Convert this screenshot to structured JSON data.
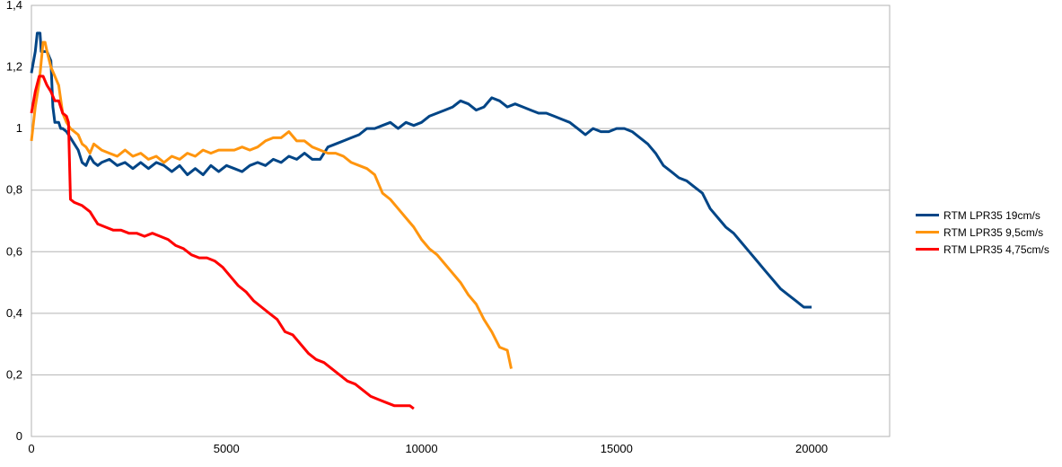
{
  "chart_data": {
    "type": "line",
    "title": "",
    "xlabel": "",
    "ylabel": "",
    "xlim": [
      0,
      22000
    ],
    "ylim": [
      0,
      1.4
    ],
    "x_ticks": [
      0,
      5000,
      10000,
      15000,
      20000
    ],
    "y_ticks": [
      0,
      0.2,
      0.4,
      0.6,
      0.8,
      1,
      1.2,
      1.4
    ],
    "x_tick_labels": [
      "0",
      "5000",
      "10000",
      "15000",
      "20000"
    ],
    "y_tick_labels": [
      "0",
      "0,2",
      "0,4",
      "0,6",
      "0,8",
      "1",
      "1,2",
      "1,4"
    ],
    "grid": "horizontal",
    "legend_position": "right",
    "series": [
      {
        "name": "RTM LPR35 19cm/s",
        "color": "#004586",
        "points": [
          [
            0,
            1.18
          ],
          [
            100,
            1.25
          ],
          [
            150,
            1.31
          ],
          [
            220,
            1.31
          ],
          [
            250,
            1.25
          ],
          [
            400,
            1.25
          ],
          [
            500,
            1.22
          ],
          [
            550,
            1.07
          ],
          [
            600,
            1.02
          ],
          [
            700,
            1.02
          ],
          [
            750,
            1.0
          ],
          [
            800,
            1.0
          ],
          [
            900,
            0.99
          ],
          [
            1000,
            0.97
          ],
          [
            1100,
            0.95
          ],
          [
            1200,
            0.93
          ],
          [
            1300,
            0.89
          ],
          [
            1400,
            0.88
          ],
          [
            1500,
            0.91
          ],
          [
            1600,
            0.89
          ],
          [
            1700,
            0.88
          ],
          [
            1800,
            0.89
          ],
          [
            2000,
            0.9
          ],
          [
            2200,
            0.88
          ],
          [
            2400,
            0.89
          ],
          [
            2600,
            0.87
          ],
          [
            2800,
            0.89
          ],
          [
            3000,
            0.87
          ],
          [
            3200,
            0.89
          ],
          [
            3400,
            0.88
          ],
          [
            3600,
            0.86
          ],
          [
            3800,
            0.88
          ],
          [
            4000,
            0.85
          ],
          [
            4200,
            0.87
          ],
          [
            4400,
            0.85
          ],
          [
            4600,
            0.88
          ],
          [
            4800,
            0.86
          ],
          [
            5000,
            0.88
          ],
          [
            5200,
            0.87
          ],
          [
            5400,
            0.86
          ],
          [
            5600,
            0.88
          ],
          [
            5800,
            0.89
          ],
          [
            6000,
            0.88
          ],
          [
            6200,
            0.9
          ],
          [
            6400,
            0.89
          ],
          [
            6600,
            0.91
          ],
          [
            6800,
            0.9
          ],
          [
            7000,
            0.92
          ],
          [
            7200,
            0.9
          ],
          [
            7400,
            0.9
          ],
          [
            7600,
            0.94
          ],
          [
            7800,
            0.95
          ],
          [
            8000,
            0.96
          ],
          [
            8200,
            0.97
          ],
          [
            8400,
            0.98
          ],
          [
            8600,
            1.0
          ],
          [
            8800,
            1.0
          ],
          [
            9000,
            1.01
          ],
          [
            9200,
            1.02
          ],
          [
            9400,
            1.0
          ],
          [
            9600,
            1.02
          ],
          [
            9800,
            1.01
          ],
          [
            10000,
            1.02
          ],
          [
            10200,
            1.04
          ],
          [
            10400,
            1.05
          ],
          [
            10600,
            1.06
          ],
          [
            10800,
            1.07
          ],
          [
            11000,
            1.09
          ],
          [
            11200,
            1.08
          ],
          [
            11400,
            1.06
          ],
          [
            11600,
            1.07
          ],
          [
            11800,
            1.1
          ],
          [
            12000,
            1.09
          ],
          [
            12200,
            1.07
          ],
          [
            12400,
            1.08
          ],
          [
            12600,
            1.07
          ],
          [
            12800,
            1.06
          ],
          [
            13000,
            1.05
          ],
          [
            13200,
            1.05
          ],
          [
            13400,
            1.04
          ],
          [
            13600,
            1.03
          ],
          [
            13800,
            1.02
          ],
          [
            14000,
            1.0
          ],
          [
            14200,
            0.98
          ],
          [
            14400,
            1.0
          ],
          [
            14600,
            0.99
          ],
          [
            14800,
            0.99
          ],
          [
            15000,
            1.0
          ],
          [
            15200,
            1.0
          ],
          [
            15400,
            0.99
          ],
          [
            15600,
            0.97
          ],
          [
            15800,
            0.95
          ],
          [
            16000,
            0.92
          ],
          [
            16200,
            0.88
          ],
          [
            16400,
            0.86
          ],
          [
            16600,
            0.84
          ],
          [
            16800,
            0.83
          ],
          [
            17000,
            0.81
          ],
          [
            17200,
            0.79
          ],
          [
            17400,
            0.74
          ],
          [
            17600,
            0.71
          ],
          [
            17800,
            0.68
          ],
          [
            18000,
            0.66
          ],
          [
            18200,
            0.63
          ],
          [
            18400,
            0.6
          ],
          [
            18600,
            0.57
          ],
          [
            18800,
            0.54
          ],
          [
            19000,
            0.51
          ],
          [
            19200,
            0.48
          ],
          [
            19400,
            0.46
          ],
          [
            19600,
            0.44
          ],
          [
            19800,
            0.42
          ],
          [
            20000,
            0.42
          ]
        ]
      },
      {
        "name": "RTM LPR35 9,5cm/s",
        "color": "#ff950e",
        "points": [
          [
            0,
            0.96
          ],
          [
            100,
            1.07
          ],
          [
            200,
            1.15
          ],
          [
            300,
            1.28
          ],
          [
            350,
            1.28
          ],
          [
            400,
            1.25
          ],
          [
            500,
            1.2
          ],
          [
            600,
            1.17
          ],
          [
            700,
            1.14
          ],
          [
            800,
            1.05
          ],
          [
            900,
            1.02
          ],
          [
            1000,
            1.0
          ],
          [
            1100,
            0.99
          ],
          [
            1200,
            0.98
          ],
          [
            1300,
            0.95
          ],
          [
            1400,
            0.94
          ],
          [
            1500,
            0.92
          ],
          [
            1600,
            0.95
          ],
          [
            1800,
            0.93
          ],
          [
            2000,
            0.92
          ],
          [
            2200,
            0.91
          ],
          [
            2400,
            0.93
          ],
          [
            2600,
            0.91
          ],
          [
            2800,
            0.92
          ],
          [
            3000,
            0.9
          ],
          [
            3200,
            0.91
          ],
          [
            3400,
            0.89
          ],
          [
            3600,
            0.91
          ],
          [
            3800,
            0.9
          ],
          [
            4000,
            0.92
          ],
          [
            4200,
            0.91
          ],
          [
            4400,
            0.93
          ],
          [
            4600,
            0.92
          ],
          [
            4800,
            0.93
          ],
          [
            5000,
            0.93
          ],
          [
            5200,
            0.93
          ],
          [
            5400,
            0.94
          ],
          [
            5600,
            0.93
          ],
          [
            5800,
            0.94
          ],
          [
            6000,
            0.96
          ],
          [
            6200,
            0.97
          ],
          [
            6400,
            0.97
          ],
          [
            6600,
            0.99
          ],
          [
            6800,
            0.96
          ],
          [
            7000,
            0.96
          ],
          [
            7200,
            0.94
          ],
          [
            7400,
            0.93
          ],
          [
            7600,
            0.92
          ],
          [
            7800,
            0.92
          ],
          [
            8000,
            0.91
          ],
          [
            8200,
            0.89
          ],
          [
            8400,
            0.88
          ],
          [
            8600,
            0.87
          ],
          [
            8800,
            0.85
          ],
          [
            9000,
            0.79
          ],
          [
            9200,
            0.77
          ],
          [
            9400,
            0.74
          ],
          [
            9600,
            0.71
          ],
          [
            9800,
            0.68
          ],
          [
            10000,
            0.64
          ],
          [
            10200,
            0.61
          ],
          [
            10400,
            0.59
          ],
          [
            10600,
            0.56
          ],
          [
            10800,
            0.53
          ],
          [
            11000,
            0.5
          ],
          [
            11200,
            0.46
          ],
          [
            11400,
            0.43
          ],
          [
            11600,
            0.38
          ],
          [
            11800,
            0.34
          ],
          [
            12000,
            0.29
          ],
          [
            12200,
            0.28
          ],
          [
            12300,
            0.22
          ]
        ]
      },
      {
        "name": "RTM LPR35 4,75cm/s",
        "color": "#ff0000",
        "points": [
          [
            0,
            1.05
          ],
          [
            100,
            1.12
          ],
          [
            200,
            1.17
          ],
          [
            300,
            1.17
          ],
          [
            400,
            1.14
          ],
          [
            500,
            1.12
          ],
          [
            600,
            1.09
          ],
          [
            700,
            1.09
          ],
          [
            800,
            1.05
          ],
          [
            900,
            1.04
          ],
          [
            950,
            1.02
          ],
          [
            1000,
            0.77
          ],
          [
            1100,
            0.76
          ],
          [
            1300,
            0.75
          ],
          [
            1500,
            0.73
          ],
          [
            1600,
            0.71
          ],
          [
            1700,
            0.69
          ],
          [
            1900,
            0.68
          ],
          [
            2100,
            0.67
          ],
          [
            2300,
            0.67
          ],
          [
            2500,
            0.66
          ],
          [
            2700,
            0.66
          ],
          [
            2900,
            0.65
          ],
          [
            3100,
            0.66
          ],
          [
            3300,
            0.65
          ],
          [
            3500,
            0.64
          ],
          [
            3700,
            0.62
          ],
          [
            3900,
            0.61
          ],
          [
            4100,
            0.59
          ],
          [
            4300,
            0.58
          ],
          [
            4500,
            0.58
          ],
          [
            4700,
            0.57
          ],
          [
            4900,
            0.55
          ],
          [
            5100,
            0.52
          ],
          [
            5300,
            0.49
          ],
          [
            5500,
            0.47
          ],
          [
            5700,
            0.44
          ],
          [
            5900,
            0.42
          ],
          [
            6100,
            0.4
          ],
          [
            6300,
            0.38
          ],
          [
            6500,
            0.34
          ],
          [
            6700,
            0.33
          ],
          [
            6900,
            0.3
          ],
          [
            7100,
            0.27
          ],
          [
            7300,
            0.25
          ],
          [
            7500,
            0.24
          ],
          [
            7700,
            0.22
          ],
          [
            7900,
            0.2
          ],
          [
            8100,
            0.18
          ],
          [
            8300,
            0.17
          ],
          [
            8500,
            0.15
          ],
          [
            8700,
            0.13
          ],
          [
            8900,
            0.12
          ],
          [
            9100,
            0.11
          ],
          [
            9300,
            0.1
          ],
          [
            9500,
            0.1
          ],
          [
            9700,
            0.1
          ],
          [
            9800,
            0.09
          ]
        ]
      }
    ]
  }
}
